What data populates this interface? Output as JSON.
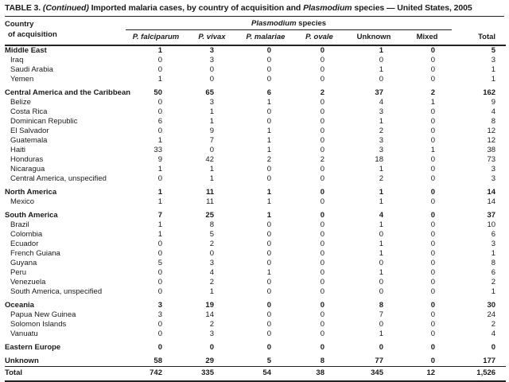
{
  "colors": {
    "text": "#1a1a1a",
    "background": "#ffffff",
    "rule": "#222222"
  },
  "table": {
    "title": {
      "label_prefix": "TABLE 3.",
      "continued": "(Continued)",
      "body": "Imported malaria cases, by country of acquisition and",
      "genus": "Plasmodium",
      "suffix": "species — United States, 2005"
    },
    "header": {
      "country_line1": "Country",
      "country_line2": "of acquisition",
      "spanner_genus": "Plasmodium",
      "spanner_word": "species",
      "columns": [
        "P. falciparum",
        "P. vivax",
        "P. malariae",
        "P. ovale",
        "Unknown",
        "Mixed",
        "Total"
      ]
    },
    "rows": [
      {
        "label": "Middle East",
        "type": "group",
        "gap": false,
        "values": [
          "1",
          "3",
          "0",
          "0",
          "1",
          "0",
          "5"
        ]
      },
      {
        "label": "Iraq",
        "type": "sub",
        "gap": false,
        "values": [
          "0",
          "3",
          "0",
          "0",
          "0",
          "0",
          "3"
        ]
      },
      {
        "label": "Saudi Arabia",
        "type": "sub",
        "gap": false,
        "values": [
          "0",
          "0",
          "0",
          "0",
          "1",
          "0",
          "1"
        ]
      },
      {
        "label": "Yemen",
        "type": "sub",
        "gap": false,
        "values": [
          "1",
          "0",
          "0",
          "0",
          "0",
          "0",
          "1"
        ]
      },
      {
        "label": "Central America and the Caribbean",
        "type": "group",
        "gap": true,
        "values": [
          "50",
          "65",
          "6",
          "2",
          "37",
          "2",
          "162"
        ]
      },
      {
        "label": "Belize",
        "type": "sub",
        "gap": false,
        "values": [
          "0",
          "3",
          "1",
          "0",
          "4",
          "1",
          "9"
        ]
      },
      {
        "label": "Costa Rica",
        "type": "sub",
        "gap": false,
        "values": [
          "0",
          "1",
          "0",
          "0",
          "3",
          "0",
          "4"
        ]
      },
      {
        "label": "Dominican Republic",
        "type": "sub",
        "gap": false,
        "values": [
          "6",
          "1",
          "0",
          "0",
          "1",
          "0",
          "8"
        ]
      },
      {
        "label": "El Salvador",
        "type": "sub",
        "gap": false,
        "values": [
          "0",
          "9",
          "1",
          "0",
          "2",
          "0",
          "12"
        ]
      },
      {
        "label": "Guatemala",
        "type": "sub",
        "gap": false,
        "values": [
          "1",
          "7",
          "1",
          "0",
          "3",
          "0",
          "12"
        ]
      },
      {
        "label": "Haiti",
        "type": "sub",
        "gap": false,
        "values": [
          "33",
          "0",
          "1",
          "0",
          "3",
          "1",
          "38"
        ]
      },
      {
        "label": "Honduras",
        "type": "sub",
        "gap": false,
        "values": [
          "9",
          "42",
          "2",
          "2",
          "18",
          "0",
          "73"
        ]
      },
      {
        "label": "Nicaragua",
        "type": "sub",
        "gap": false,
        "values": [
          "1",
          "1",
          "0",
          "0",
          "1",
          "0",
          "3"
        ]
      },
      {
        "label": "Central America, unspecified",
        "type": "sub",
        "gap": false,
        "values": [
          "0",
          "1",
          "0",
          "0",
          "2",
          "0",
          "3"
        ]
      },
      {
        "label": "North America",
        "type": "group",
        "gap": true,
        "values": [
          "1",
          "11",
          "1",
          "0",
          "1",
          "0",
          "14"
        ]
      },
      {
        "label": "Mexico",
        "type": "sub",
        "gap": false,
        "values": [
          "1",
          "11",
          "1",
          "0",
          "1",
          "0",
          "14"
        ]
      },
      {
        "label": "South America",
        "type": "group",
        "gap": true,
        "values": [
          "7",
          "25",
          "1",
          "0",
          "4",
          "0",
          "37"
        ]
      },
      {
        "label": "Brazil",
        "type": "sub",
        "gap": false,
        "values": [
          "1",
          "8",
          "0",
          "0",
          "1",
          "0",
          "10"
        ]
      },
      {
        "label": "Colombia",
        "type": "sub",
        "gap": false,
        "values": [
          "1",
          "5",
          "0",
          "0",
          "0",
          "0",
          "6"
        ]
      },
      {
        "label": "Ecuador",
        "type": "sub",
        "gap": false,
        "values": [
          "0",
          "2",
          "0",
          "0",
          "1",
          "0",
          "3"
        ]
      },
      {
        "label": "French Guiana",
        "type": "sub",
        "gap": false,
        "values": [
          "0",
          "0",
          "0",
          "0",
          "1",
          "0",
          "1"
        ]
      },
      {
        "label": "Guyana",
        "type": "sub",
        "gap": false,
        "values": [
          "5",
          "3",
          "0",
          "0",
          "0",
          "0",
          "8"
        ]
      },
      {
        "label": "Peru",
        "type": "sub",
        "gap": false,
        "values": [
          "0",
          "4",
          "1",
          "0",
          "1",
          "0",
          "6"
        ]
      },
      {
        "label": "Venezuela",
        "type": "sub",
        "gap": false,
        "values": [
          "0",
          "2",
          "0",
          "0",
          "0",
          "0",
          "2"
        ]
      },
      {
        "label": "South America, unspecified",
        "type": "sub",
        "gap": false,
        "values": [
          "0",
          "1",
          "0",
          "0",
          "0",
          "0",
          "1"
        ]
      },
      {
        "label": "Oceania",
        "type": "group",
        "gap": true,
        "values": [
          "3",
          "19",
          "0",
          "0",
          "8",
          "0",
          "30"
        ]
      },
      {
        "label": "Papua New Guinea",
        "type": "sub",
        "gap": false,
        "values": [
          "3",
          "14",
          "0",
          "0",
          "7",
          "0",
          "24"
        ]
      },
      {
        "label": "Solomon Islands",
        "type": "sub",
        "gap": false,
        "values": [
          "0",
          "2",
          "0",
          "0",
          "0",
          "0",
          "2"
        ]
      },
      {
        "label": "Vanuatu",
        "type": "sub",
        "gap": false,
        "values": [
          "0",
          "3",
          "0",
          "0",
          "1",
          "0",
          "4"
        ]
      },
      {
        "label": "Eastern Europe",
        "type": "group",
        "gap": true,
        "values": [
          "0",
          "0",
          "0",
          "0",
          "0",
          "0",
          "0"
        ]
      },
      {
        "label": "Unknown",
        "type": "group",
        "gap": true,
        "values": [
          "58",
          "29",
          "5",
          "8",
          "77",
          "0",
          "177"
        ]
      },
      {
        "label": "Total",
        "type": "total",
        "gap": false,
        "values": [
          "742",
          "335",
          "54",
          "38",
          "345",
          "12",
          "1,526"
        ]
      }
    ]
  }
}
